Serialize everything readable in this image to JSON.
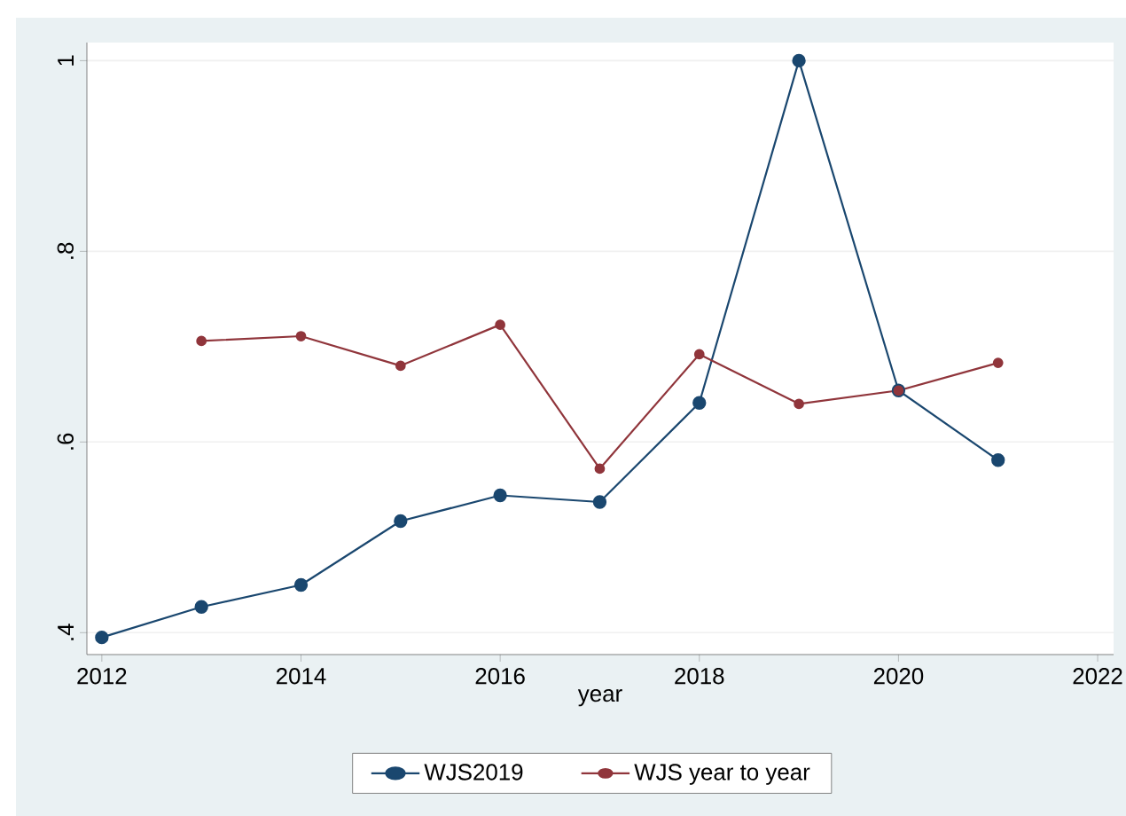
{
  "chart_data": {
    "type": "line",
    "xlabel": "year",
    "x": [
      2012,
      2013,
      2014,
      2015,
      2016,
      2017,
      2018,
      2019,
      2020,
      2021
    ],
    "series": [
      {
        "name": "WJS2019",
        "color": "#1a476f",
        "values": [
          0.395,
          0.427,
          0.45,
          0.517,
          0.544,
          0.537,
          0.641,
          1.0,
          0.654,
          0.581
        ]
      },
      {
        "name": "WJS year to year",
        "color": "#90353b",
        "values": [
          null,
          0.706,
          0.711,
          0.68,
          0.723,
          0.572,
          0.692,
          0.64,
          0.654,
          0.683
        ]
      }
    ],
    "xlim": [
      2011.85,
      2022.16
    ],
    "ylim": [
      0.377,
      1.019
    ],
    "xticks": [
      2012,
      2014,
      2016,
      2018,
      2020,
      2022
    ],
    "yticks": [
      {
        "value": 0.4,
        "label": ".4"
      },
      {
        "value": 0.6,
        "label": ".6"
      },
      {
        "value": 0.8,
        "label": ".8"
      },
      {
        "value": 1,
        "label": "1"
      }
    ],
    "grid": "y",
    "legend": "bottom",
    "marker": "circle",
    "line_style": "solid"
  }
}
